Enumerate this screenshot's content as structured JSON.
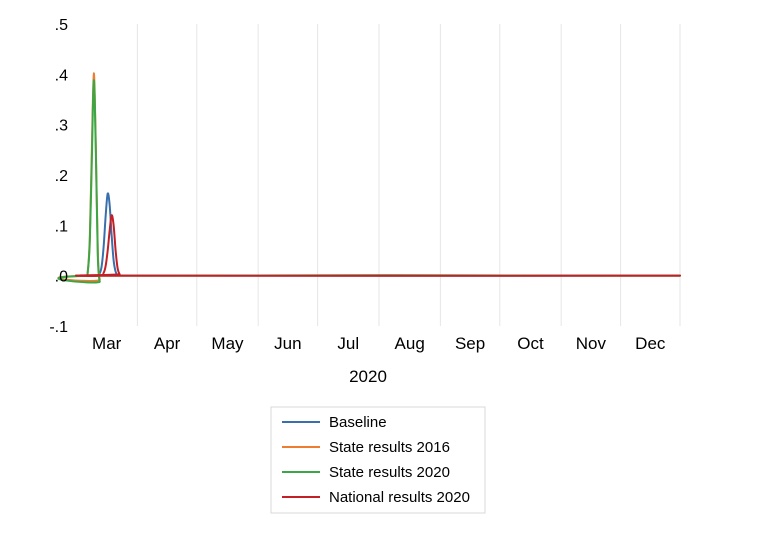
{
  "chart_data": {
    "type": "line",
    "title": "",
    "xlabel": "2020",
    "ylabel": "",
    "x_range": [
      "2020-03-01",
      "2020-12-31"
    ],
    "x_ticks": [
      "Mar",
      "Apr",
      "May",
      "Jun",
      "Jul",
      "Aug",
      "Sep",
      "Oct",
      "Nov",
      "Dec"
    ],
    "ylim": [
      -0.1,
      0.5
    ],
    "y_ticks": [
      ".5",
      ".4",
      ".3",
      ".2",
      ".1",
      ".0",
      "-.1"
    ],
    "y_tick_values": [
      0.5,
      0.4,
      0.3,
      0.2,
      0.1,
      0.0,
      -0.1
    ],
    "grid": "vertical",
    "legend_position": "bottom",
    "series": [
      {
        "name": "Baseline",
        "color": "#3a6fad",
        "points": [
          [
            "2020-03-01",
            0.0
          ],
          [
            "2020-03-11",
            0.0
          ],
          [
            "2020-03-13",
            0.005
          ],
          [
            "2020-03-14",
            0.02
          ],
          [
            "2020-03-15",
            0.06
          ],
          [
            "2020-03-16",
            0.12
          ],
          [
            "2020-03-17",
            0.163
          ],
          [
            "2020-03-18",
            0.14
          ],
          [
            "2020-03-19",
            0.08
          ],
          [
            "2020-03-20",
            0.03
          ],
          [
            "2020-03-21",
            0.008
          ],
          [
            "2020-03-22",
            0.001
          ],
          [
            "2020-03-23",
            0.0
          ],
          [
            "2020-12-31",
            0.0
          ]
        ]
      },
      {
        "name": "State results 2016",
        "color": "#ed7d31",
        "points": [
          [
            "2020-03-01",
            0.0
          ],
          [
            "2020-03-06",
            0.0
          ],
          [
            "2020-03-07",
            0.01
          ],
          [
            "2020-03-08",
            0.08
          ],
          [
            "2020-03-09",
            0.25
          ],
          [
            "2020-03-10",
            0.402
          ],
          [
            "2020-03-11",
            0.26
          ],
          [
            "2020-03-12",
            0.05
          ],
          [
            "2020-03-13",
            -0.008
          ],
          [
            "2020-03-14",
            0.0
          ],
          [
            "2020-12-31",
            0.0
          ]
        ]
      },
      {
        "name": "State results 2020",
        "color": "#3ca646",
        "points": [
          [
            "2020-03-01",
            0.0
          ],
          [
            "2020-03-06",
            0.0
          ],
          [
            "2020-03-07",
            0.01
          ],
          [
            "2020-03-08",
            0.07
          ],
          [
            "2020-03-09",
            0.23
          ],
          [
            "2020-03-10",
            0.388
          ],
          [
            "2020-03-11",
            0.25
          ],
          [
            "2020-03-12",
            0.04
          ],
          [
            "2020-03-13",
            -0.012
          ],
          [
            "2020-03-14",
            0.0
          ],
          [
            "2020-12-31",
            0.0
          ]
        ]
      },
      {
        "name": "National results 2020",
        "color": "#c22026",
        "points": [
          [
            "2020-03-01",
            0.0
          ],
          [
            "2020-03-13",
            0.0
          ],
          [
            "2020-03-15",
            0.006
          ],
          [
            "2020-03-16",
            0.02
          ],
          [
            "2020-03-17",
            0.05
          ],
          [
            "2020-03-18",
            0.09
          ],
          [
            "2020-03-19",
            0.12
          ],
          [
            "2020-03-20",
            0.1
          ],
          [
            "2020-03-21",
            0.05
          ],
          [
            "2020-03-22",
            0.015
          ],
          [
            "2020-03-23",
            0.003
          ],
          [
            "2020-03-24",
            0.0
          ],
          [
            "2020-12-31",
            0.0
          ]
        ]
      }
    ]
  }
}
